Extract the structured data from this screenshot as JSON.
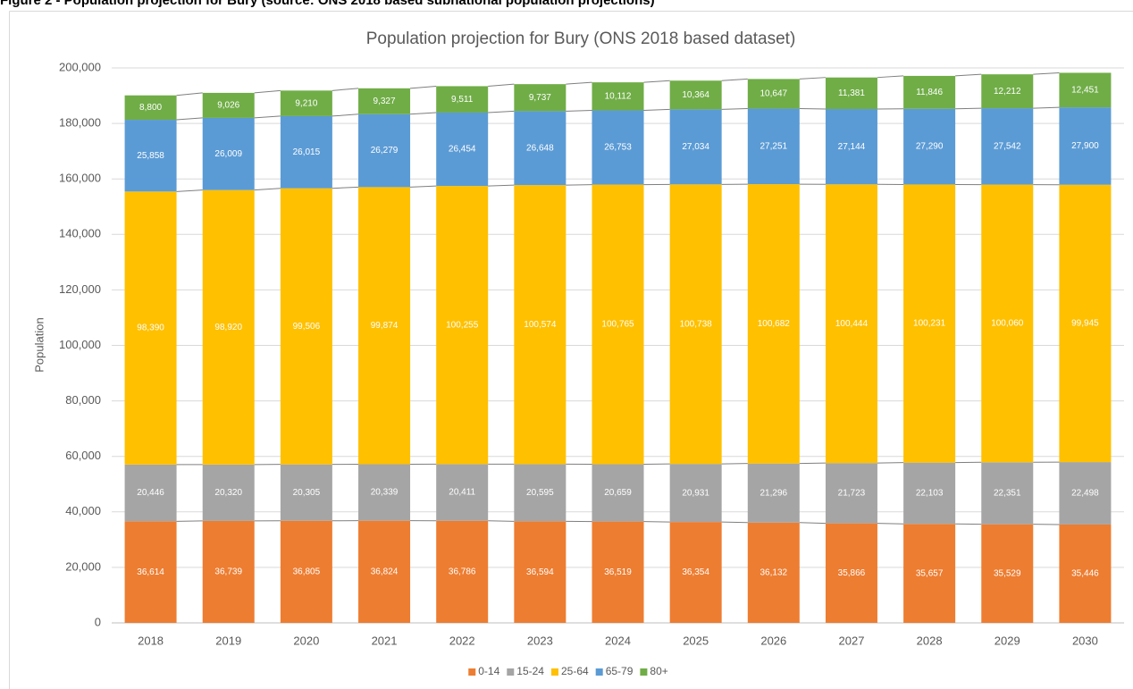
{
  "caption": "Figure 2 - Population projection for Bury (source: ONS 2018 based subnational population projections)",
  "chart_data": {
    "type": "stacked_bar",
    "title": "Population projection for Bury (ONS 2018 based dataset)",
    "y_label": "Population",
    "categories": [
      "2018",
      "2019",
      "2020",
      "2021",
      "2022",
      "2023",
      "2024",
      "2025",
      "2026",
      "2027",
      "2028",
      "2029",
      "2030"
    ],
    "ylim": [
      0,
      200000
    ],
    "yticks": [
      0,
      {
        "value": 20000,
        "label": "20,000"
      },
      {
        "value": 40000,
        "label": "40,000"
      },
      {
        "value": 60000,
        "label": "60,000"
      },
      {
        "value": 80000,
        "label": "80,000"
      },
      {
        "value": 100000,
        "label": "100,000"
      },
      {
        "value": 120000,
        "label": "120,000"
      },
      {
        "value": 140000,
        "label": "140,000"
      },
      {
        "value": 160000,
        "label": "160,000"
      },
      {
        "value": 180000,
        "label": "180,000"
      },
      {
        "value": 200000,
        "label": "200,000"
      }
    ],
    "grid": true,
    "legend": "bottom",
    "series": [
      {
        "name": "0-14",
        "color": "#ed7d31",
        "values": [
          36614,
          36739,
          36805,
          36824,
          36786,
          36594,
          36519,
          36354,
          36132,
          35866,
          35657,
          35529,
          35446
        ],
        "value_labels": [
          "36,614",
          "36,739",
          "36,805",
          "36,824",
          "36,786",
          "36,594",
          "36,519",
          "36,354",
          "36,132",
          "35,866",
          "35,657",
          "35,529",
          "35,446"
        ]
      },
      {
        "name": "15-24",
        "color": "#a5a5a5",
        "values": [
          20446,
          20320,
          20305,
          20339,
          20411,
          20595,
          20659,
          20931,
          21296,
          21723,
          22103,
          22351,
          22498
        ],
        "value_labels": [
          "20,446",
          "20,320",
          "20,305",
          "20,339",
          "20,411",
          "20,595",
          "20,659",
          "20,931",
          "21,296",
          "21,723",
          "22,103",
          "22,351",
          "22,498"
        ]
      },
      {
        "name": "25-64",
        "color": "#ffc000",
        "values": [
          98390,
          98920,
          99506,
          99874,
          100255,
          100574,
          100765,
          100738,
          100682,
          100444,
          100231,
          100060,
          99945
        ],
        "value_labels": [
          "98,390",
          "98,920",
          "99,506",
          "99,874",
          "100,255",
          "100,574",
          "100,765",
          "100,738",
          "100,682",
          "100,444",
          "100,231",
          "100,060",
          "99,945"
        ]
      },
      {
        "name": "65-79",
        "color": "#5b9bd5",
        "values": [
          25858,
          26009,
          26015,
          26279,
          26454,
          26648,
          26753,
          27034,
          27251,
          27144,
          27290,
          27542,
          27900
        ],
        "value_labels": [
          "25,858",
          "26,009",
          "26,015",
          "26,279",
          "26,454",
          "26,648",
          "26,753",
          "27,034",
          "27,251",
          "27,144",
          "27,290",
          "27,542",
          "27,900"
        ]
      },
      {
        "name": "80+",
        "color": "#70ad47",
        "values": [
          8800,
          9026,
          9210,
          9327,
          9511,
          9737,
          10112,
          10364,
          10647,
          11381,
          11846,
          12212,
          12451
        ],
        "value_labels": [
          "8,800",
          "9,026",
          "9,210",
          "9,327",
          "9,511",
          "9,737",
          "10,112",
          "10,364",
          "10,647",
          "11,381",
          "11,846",
          "12,212",
          "12,451"
        ]
      }
    ]
  }
}
